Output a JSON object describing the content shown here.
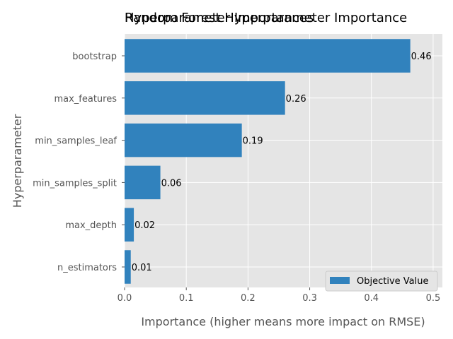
{
  "chart_data": {
    "type": "bar",
    "orientation": "horizontal",
    "titles": [
      "Random Forest Hyperparameter Importance",
      "Hyperparameter Importances"
    ],
    "xlabel": "Importance (higher means more impact on RMSE)",
    "ylabel": "Hyperparameter",
    "categories": [
      "bootstrap",
      "max_features",
      "min_samples_leaf",
      "min_samples_split",
      "max_depth",
      "n_estimators"
    ],
    "series": [
      {
        "name": "Objective Value",
        "values": [
          0.463,
          0.26,
          0.19,
          0.058,
          0.015,
          0.01
        ],
        "labels": [
          "0.46",
          "0.26",
          "0.19",
          "0.06",
          "0.02",
          "0.01"
        ],
        "color": "#3182bd"
      }
    ],
    "xlim": [
      0,
      0.515
    ],
    "xticks": [
      0.0,
      0.1,
      0.2,
      0.3,
      0.4,
      0.5
    ],
    "xtick_labels": [
      "0.0",
      "0.1",
      "0.2",
      "0.3",
      "0.4",
      "0.5"
    ],
    "grid": true,
    "legend_position": "lower-right",
    "background_color": "#e5e5e5",
    "grid_color": "#ffffff"
  }
}
